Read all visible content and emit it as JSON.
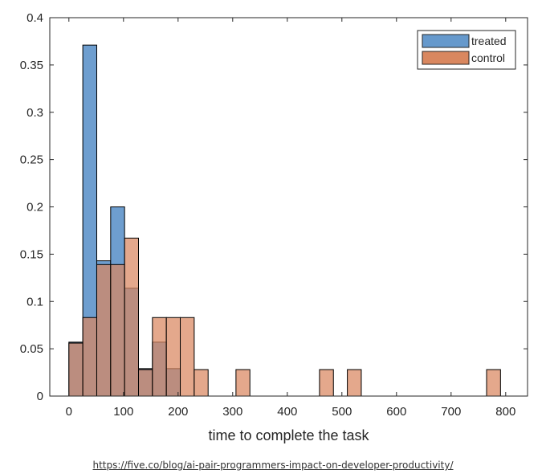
{
  "chart_data": {
    "type": "bar",
    "title": "",
    "xlabel": "time to complete the task",
    "ylabel": "",
    "xlim": [
      -35,
      840
    ],
    "ylim": [
      0,
      0.4
    ],
    "x_ticks": [
      0,
      100,
      200,
      300,
      400,
      500,
      600,
      700,
      800
    ],
    "y_ticks": [
      0,
      0.05,
      0.1,
      0.15,
      0.2,
      0.25,
      0.3,
      0.35,
      0.4
    ],
    "y_tick_labels": [
      "0",
      "0.05",
      "0.1",
      "0.15",
      "0.2",
      "0.25",
      "0.3",
      "0.35",
      "0.4"
    ],
    "bin_width": 25.5,
    "bin_edges": [
      0,
      25.5,
      51,
      76.5,
      102,
      127.5,
      153,
      178.5,
      204,
      229.5,
      255,
      306,
      331.5,
      459,
      484.5,
      510,
      535.5,
      765,
      790.5
    ],
    "legend_position": "top-right",
    "series": [
      {
        "name": "treated",
        "color": "#6699cc",
        "bins": [
          {
            "start": 0,
            "value": 0.057
          },
          {
            "start": 25.5,
            "value": 0.371
          },
          {
            "start": 51,
            "value": 0.143
          },
          {
            "start": 76.5,
            "value": 0.2
          },
          {
            "start": 102,
            "value": 0.114
          },
          {
            "start": 127.5,
            "value": 0.029
          },
          {
            "start": 153,
            "value": 0.057
          },
          {
            "start": 178.5,
            "value": 0.029
          }
        ]
      },
      {
        "name": "control",
        "color": "#d9875f",
        "bins": [
          {
            "start": 0,
            "value": 0.056
          },
          {
            "start": 25.5,
            "value": 0.083
          },
          {
            "start": 51,
            "value": 0.139
          },
          {
            "start": 76.5,
            "value": 0.139
          },
          {
            "start": 102,
            "value": 0.167
          },
          {
            "start": 127.5,
            "value": 0.028
          },
          {
            "start": 153,
            "value": 0.083
          },
          {
            "start": 178.5,
            "value": 0.083
          },
          {
            "start": 204,
            "value": 0.083
          },
          {
            "start": 229.5,
            "value": 0.028
          },
          {
            "start": 306,
            "value": 0.028
          },
          {
            "start": 459,
            "value": 0.028
          },
          {
            "start": 510,
            "value": 0.028
          },
          {
            "start": 765,
            "value": 0.028
          }
        ]
      }
    ]
  },
  "source": {
    "url_text": "https://five.co/blog/ai-pair-programmers-impact-on-developer-productivity/"
  }
}
